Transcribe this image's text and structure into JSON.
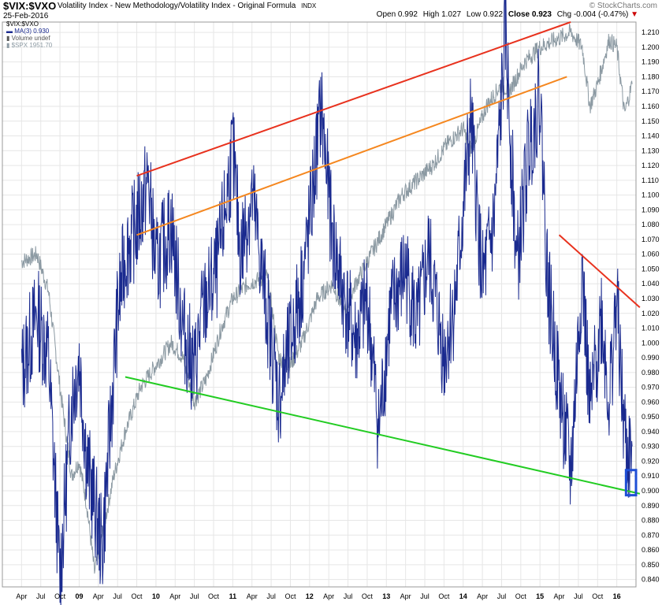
{
  "header": {
    "symbol": "$VIX:$VXO",
    "description": "Volatility Index - New Methodology/Volatility Index - Original Formula",
    "exchange": "INDX",
    "date": "25-Feb-2016",
    "open_label": "Open",
    "open": "0.992",
    "high_label": "High",
    "high": "1.027",
    "low_label": "Low",
    "low": "0.922",
    "close_label": "Close",
    "close": "0.923",
    "chg_label": "Chg",
    "chg": "-0.004 (-0.47%)",
    "watermark": "© StockCharts.com"
  },
  "legend": {
    "item1": "$VIX:$VXO",
    "item2": "MA(3) 0.930",
    "item3": "Volume undef",
    "item4": "$SPX 1951.70"
  },
  "colors": {
    "ratio": "#1a2a8f",
    "spx": "#8c9aa3",
    "upper_trend": "#e8321e",
    "mid_trend": "#f5871f",
    "lower_trend": "#22cc22",
    "decline_trend": "#e8321e",
    "highlight": "#1f4fd6",
    "grid": "#e6e6e6"
  },
  "chart_data": {
    "type": "line",
    "ylim": [
      0.835,
      1.217
    ],
    "y_ticks": [
      "1.210",
      "1.200",
      "1.190",
      "1.180",
      "1.170",
      "1.160",
      "1.150",
      "1.140",
      "1.130",
      "1.120",
      "1.110",
      "1.100",
      "1.090",
      "1.080",
      "1.070",
      "1.060",
      "1.050",
      "1.040",
      "1.030",
      "1.020",
      "1.010",
      "1.000",
      "0.990",
      "0.980",
      "0.970",
      "0.960",
      "0.950",
      "0.940",
      "0.930",
      "0.920",
      "0.910",
      "0.900",
      "0.890",
      "0.880",
      "0.870",
      "0.860",
      "0.850",
      "0.840"
    ],
    "x_ticks": [
      "Apr",
      "Jul",
      "Oct",
      "09",
      "Apr",
      "Jul",
      "Oct",
      "10",
      "Apr",
      "Jul",
      "Oct",
      "11",
      "Apr",
      "Jul",
      "Oct",
      "12",
      "Apr",
      "Jul",
      "Oct",
      "13",
      "Apr",
      "Jul",
      "Oct",
      "14",
      "Apr",
      "Jul",
      "Oct",
      "15",
      "Apr",
      "Jul",
      "Oct",
      "16"
    ],
    "x_start": "2008-04",
    "x_end": "2016-02",
    "series": [
      {
        "name": "$VIX:$VXO",
        "points": [
          [
            2008.25,
            0.98
          ],
          [
            2008.45,
            1.02
          ],
          [
            2008.6,
            0.99
          ],
          [
            2008.75,
            0.84
          ],
          [
            2008.9,
            0.96
          ],
          [
            2009.0,
            0.99
          ],
          [
            2009.1,
            0.92
          ],
          [
            2009.3,
            0.86
          ],
          [
            2009.4,
            0.94
          ],
          [
            2009.5,
            1.02
          ],
          [
            2009.6,
            1.06
          ],
          [
            2009.75,
            1.08
          ],
          [
            2009.9,
            1.11
          ],
          [
            2010.0,
            1.05
          ],
          [
            2010.2,
            1.08
          ],
          [
            2010.35,
            1.01
          ],
          [
            2010.5,
            0.98
          ],
          [
            2010.6,
            1.02
          ],
          [
            2010.8,
            1.05
          ],
          [
            2011.0,
            1.13
          ],
          [
            2011.1,
            1.06
          ],
          [
            2011.25,
            1.1
          ],
          [
            2011.45,
            1.02
          ],
          [
            2011.6,
            0.96
          ],
          [
            2011.75,
            1.0
          ],
          [
            2011.9,
            1.04
          ],
          [
            2012.0,
            1.08
          ],
          [
            2012.15,
            1.16
          ],
          [
            2012.3,
            1.07
          ],
          [
            2012.45,
            1.03
          ],
          [
            2012.6,
            1.0
          ],
          [
            2012.75,
            1.03
          ],
          [
            2012.9,
            0.94
          ],
          [
            2013.05,
            1.02
          ],
          [
            2013.25,
            1.05
          ],
          [
            2013.4,
            1.01
          ],
          [
            2013.55,
            1.06
          ],
          [
            2013.75,
            0.99
          ],
          [
            2013.9,
            1.03
          ],
          [
            2014.1,
            1.15
          ],
          [
            2014.25,
            1.04
          ],
          [
            2014.4,
            1.08
          ],
          [
            2014.55,
            1.21
          ],
          [
            2014.7,
            1.05
          ],
          [
            2014.85,
            1.13
          ],
          [
            2015.0,
            1.17
          ],
          [
            2015.1,
            1.04
          ],
          [
            2015.25,
            0.97
          ],
          [
            2015.4,
            0.91
          ],
          [
            2015.55,
            1.05
          ],
          [
            2015.65,
            0.95
          ],
          [
            2015.8,
            1.02
          ],
          [
            2015.9,
            0.96
          ],
          [
            2016.0,
            1.03
          ],
          [
            2016.08,
            0.95
          ],
          [
            2016.15,
            0.92
          ],
          [
            2016.2,
            0.93
          ]
        ]
      },
      {
        "name": "$SPX",
        "points": [
          [
            2008.25,
            1.055
          ],
          [
            2008.45,
            1.06
          ],
          [
            2008.6,
            1.035
          ],
          [
            2008.75,
            0.97
          ],
          [
            2008.9,
            0.91
          ],
          [
            2009.0,
            0.92
          ],
          [
            2009.1,
            0.89
          ],
          [
            2009.2,
            0.845
          ],
          [
            2009.3,
            0.87
          ],
          [
            2009.45,
            0.91
          ],
          [
            2009.6,
            0.94
          ],
          [
            2009.8,
            0.97
          ],
          [
            2010.0,
            0.985
          ],
          [
            2010.2,
            1.0
          ],
          [
            2010.35,
            0.99
          ],
          [
            2010.5,
            0.96
          ],
          [
            2010.65,
            0.975
          ],
          [
            2010.85,
            1.01
          ],
          [
            2011.0,
            1.03
          ],
          [
            2011.2,
            1.04
          ],
          [
            2011.45,
            1.045
          ],
          [
            2011.6,
            0.99
          ],
          [
            2011.75,
            0.985
          ],
          [
            2011.9,
            1.0
          ],
          [
            2012.1,
            1.03
          ],
          [
            2012.3,
            1.04
          ],
          [
            2012.45,
            1.02
          ],
          [
            2012.6,
            1.04
          ],
          [
            2012.8,
            1.06
          ],
          [
            2013.0,
            1.08
          ],
          [
            2013.2,
            1.1
          ],
          [
            2013.4,
            1.11
          ],
          [
            2013.6,
            1.12
          ],
          [
            2013.8,
            1.135
          ],
          [
            2014.0,
            1.145
          ],
          [
            2014.1,
            1.13
          ],
          [
            2014.3,
            1.16
          ],
          [
            2014.5,
            1.175
          ],
          [
            2014.6,
            1.17
          ],
          [
            2014.8,
            1.19
          ],
          [
            2015.0,
            1.2
          ],
          [
            2015.2,
            1.205
          ],
          [
            2015.4,
            1.21
          ],
          [
            2015.55,
            1.2
          ],
          [
            2015.65,
            1.16
          ],
          [
            2015.75,
            1.175
          ],
          [
            2015.9,
            1.205
          ],
          [
            2016.0,
            1.2
          ],
          [
            2016.1,
            1.155
          ],
          [
            2016.2,
            1.175
          ]
        ]
      }
    ],
    "trendlines": [
      {
        "name": "upper",
        "from": [
          2009.75,
          1.113
        ],
        "to": [
          2015.4,
          1.217
        ]
      },
      {
        "name": "middle",
        "from": [
          2009.75,
          1.073
        ],
        "to": [
          2015.35,
          1.18
        ]
      },
      {
        "name": "lower",
        "from": [
          2009.6,
          0.977
        ],
        "to": [
          2016.3,
          0.898
        ]
      },
      {
        "name": "decline",
        "from": [
          2015.25,
          1.073
        ],
        "to": [
          2016.3,
          1.024
        ]
      }
    ],
    "highlight_range": {
      "x": [
        2016.12,
        2016.25
      ],
      "y": [
        0.897,
        0.914
      ]
    }
  }
}
